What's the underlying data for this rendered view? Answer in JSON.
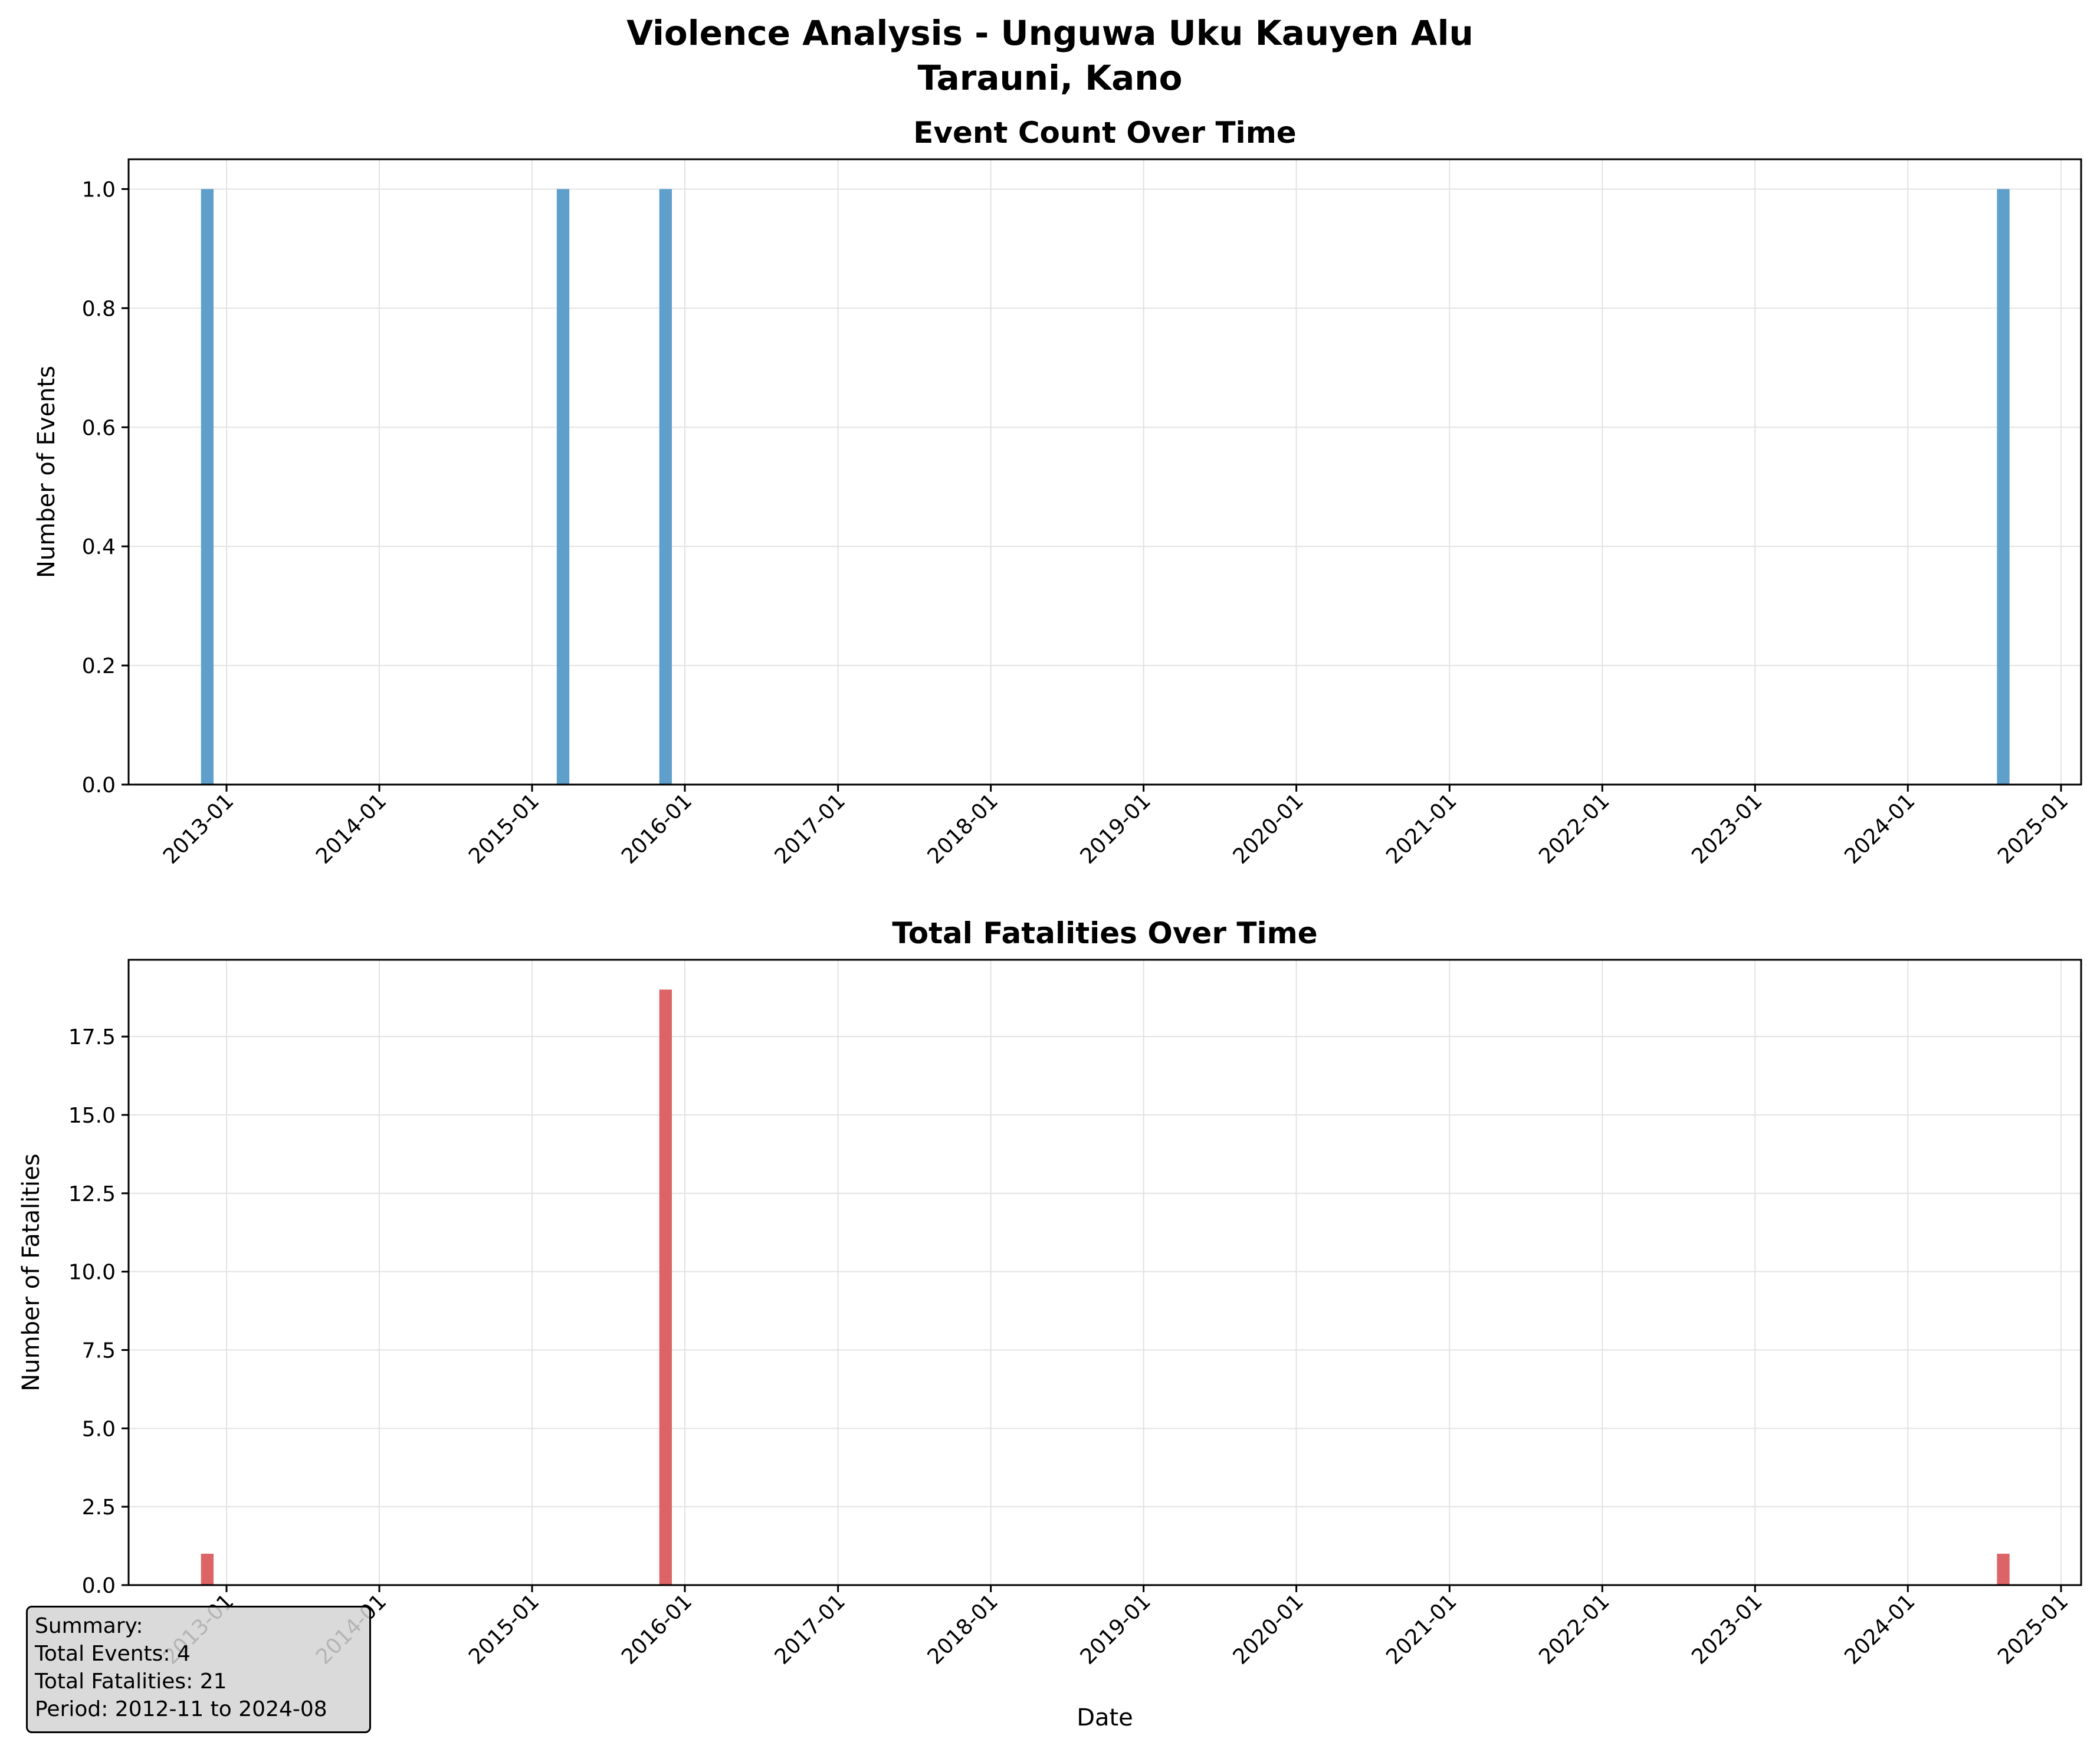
{
  "figure": {
    "title_line1": "Violence Analysis - Unguwa Uku Kauyen Alu",
    "title_line2": "Tarauni, Kano"
  },
  "summary": {
    "heading": "Summary:",
    "total_events": "Total Events: 4",
    "total_fatalities": "Total Fatalities: 21",
    "period": "Period: 2012-11 to 2024-08"
  },
  "colors": {
    "events": "#5f9fcb",
    "fatalities": "#dc6466",
    "grid": "#e3e3e3"
  },
  "chart_data": [
    {
      "type": "bar",
      "title": "Event Count Over Time",
      "xlabel": "",
      "ylabel": "Number of Events",
      "x_ticks": [
        "2013-01",
        "2014-01",
        "2015-01",
        "2016-01",
        "2017-01",
        "2018-01",
        "2019-01",
        "2020-01",
        "2021-01",
        "2022-01",
        "2023-01",
        "2024-01",
        "2025-01"
      ],
      "y_ticks": [
        "0.0",
        "0.2",
        "0.4",
        "0.6",
        "0.8",
        "1.0"
      ],
      "ylim": [
        0,
        1.05
      ],
      "xlim": [
        "2012-05-12",
        "2025-02-18"
      ],
      "grid": true,
      "series": [
        {
          "x": [
            "2012-11-01",
            "2015-03-01",
            "2015-11-01",
            "2024-08-01"
          ],
          "values": [
            1,
            1,
            1,
            1
          ]
        }
      ]
    },
    {
      "type": "bar",
      "title": "Total Fatalities Over Time",
      "xlabel": "Date",
      "ylabel": "Number of Fatalities",
      "x_ticks": [
        "2013-01",
        "2014-01",
        "2015-01",
        "2016-01",
        "2017-01",
        "2018-01",
        "2019-01",
        "2020-01",
        "2021-01",
        "2022-01",
        "2023-01",
        "2024-01",
        "2025-01"
      ],
      "y_ticks": [
        "0.0",
        "2.5",
        "5.0",
        "7.5",
        "10.0",
        "12.5",
        "15.0",
        "17.5"
      ],
      "ylim": [
        0,
        19.95
      ],
      "xlim": [
        "2012-05-12",
        "2025-02-18"
      ],
      "grid": true,
      "series": [
        {
          "x": [
            "2012-11-01",
            "2015-03-01",
            "2015-11-01",
            "2024-08-01"
          ],
          "values": [
            1,
            0,
            19,
            1
          ]
        }
      ]
    }
  ]
}
